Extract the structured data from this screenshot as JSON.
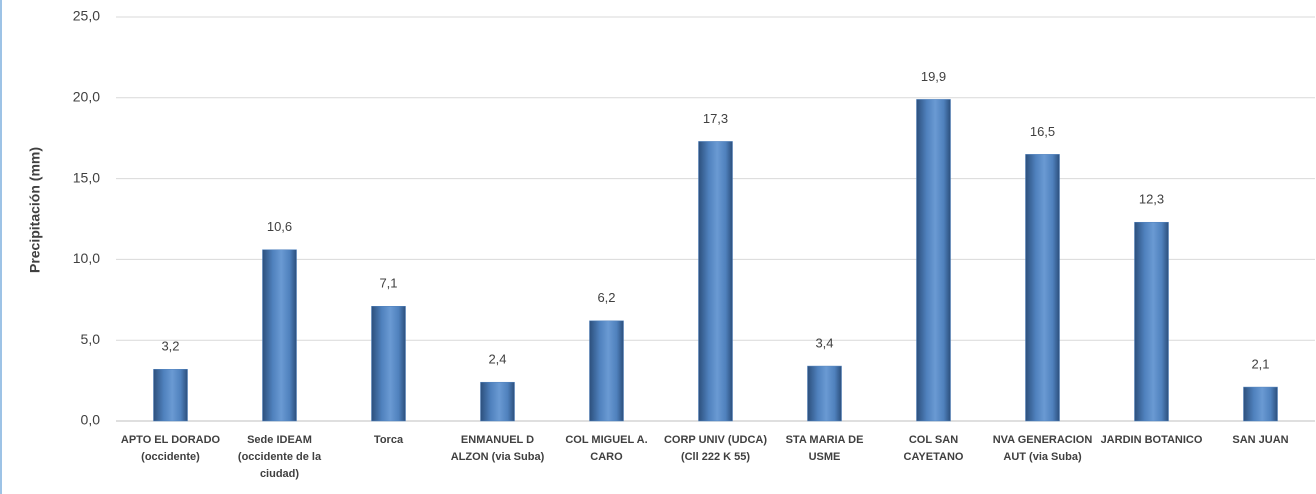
{
  "chart_data": {
    "type": "bar",
    "y_axis_label": "Precipitación (mm)",
    "categories": [
      "APTO EL DORADO (occidente)",
      "Sede IDEAM (occidente de la ciudad)",
      "Torca",
      "ENMANUEL D ALZON (via Suba)",
      "COL MIGUEL A. CARO",
      "CORP UNIV (UDCA) (Cll 222 K 55)",
      "STA MARIA DE USME",
      "COL SAN CAYETANO",
      "NVA GENERACION AUT (via Suba)",
      "JARDIN BOTANICO",
      "SAN JUAN"
    ],
    "values": [
      3.2,
      10.6,
      7.1,
      2.4,
      6.2,
      17.3,
      3.4,
      19.9,
      16.5,
      12.3,
      2.1
    ],
    "value_labels": [
      "3,2",
      "10,6",
      "7,1",
      "2,4",
      "6,2",
      "17,3",
      "3,4",
      "19,9",
      "16,5",
      "12,3",
      "2,1"
    ],
    "color": "#4f81bd",
    "ylim": [
      0,
      25
    ],
    "yticks": [
      {
        "value": 0,
        "label": "0,0"
      },
      {
        "value": 5,
        "label": "5,0"
      },
      {
        "value": 10,
        "label": "10,0"
      },
      {
        "value": 15,
        "label": "15,0"
      },
      {
        "value": 20,
        "label": "20,0"
      },
      {
        "value": 25,
        "label": "25,0"
      }
    ],
    "grid": true
  }
}
